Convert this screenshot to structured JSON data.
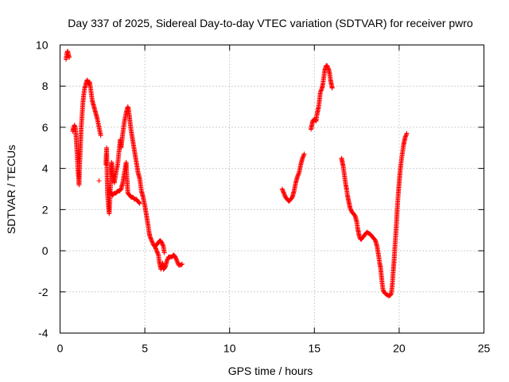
{
  "chart_data": {
    "type": "scatter",
    "title": "Day 337 of 2025, Sidereal Day-to-day VTEC variation (SDTVAR) for receiver pwro",
    "xlabel": "GPS time / hours",
    "ylabel": "SDTVAR / TECUs",
    "xlim": [
      0,
      25
    ],
    "ylim": [
      -4,
      10
    ],
    "xticks": [
      "0",
      "5",
      "10",
      "15",
      "20",
      "25"
    ],
    "yticks": [
      "-4",
      "-2",
      "0",
      "2",
      "4",
      "6",
      "8",
      "10"
    ],
    "grid": true,
    "marker": "plus",
    "color": "#ff0000",
    "series": [
      {
        "name": "pwro",
        "segments": [
          [
            [
              0.35,
              9.3
            ],
            [
              0.4,
              9.6
            ],
            [
              0.45,
              9.7
            ],
            [
              0.5,
              9.5
            ],
            [
              0.55,
              9.4
            ]
          ],
          [
            [
              0.75,
              5.8
            ],
            [
              0.8,
              6.0
            ],
            [
              0.85,
              6.1
            ],
            [
              0.9,
              6.0
            ],
            [
              0.95,
              5.5
            ],
            [
              1.0,
              4.8
            ],
            [
              1.05,
              4.0
            ],
            [
              1.1,
              3.5
            ],
            [
              1.12,
              3.2
            ],
            [
              1.15,
              4.0
            ],
            [
              1.2,
              5.0
            ],
            [
              1.25,
              6.0
            ],
            [
              1.3,
              6.6
            ],
            [
              1.35,
              7.2
            ],
            [
              1.4,
              7.6
            ],
            [
              1.45,
              7.9
            ],
            [
              1.5,
              8.0
            ],
            [
              1.55,
              8.2
            ],
            [
              1.6,
              8.3
            ],
            [
              1.65,
              8.2
            ],
            [
              1.7,
              8.1
            ],
            [
              1.75,
              8.2
            ],
            [
              1.8,
              7.9
            ],
            [
              1.85,
              7.6
            ],
            [
              1.9,
              7.3
            ],
            [
              2.0,
              7.0
            ],
            [
              2.1,
              6.7
            ],
            [
              2.2,
              6.4
            ],
            [
              2.3,
              6.0
            ],
            [
              2.4,
              5.6
            ]
          ],
          [
            [
              2.7,
              4.2
            ],
            [
              2.75,
              5.0
            ],
            [
              2.78,
              3.5
            ],
            [
              2.8,
              2.8
            ],
            [
              2.85,
              2.2
            ],
            [
              2.9,
              1.8
            ],
            [
              2.95,
              2.6
            ],
            [
              3.0,
              3.8
            ],
            [
              3.05,
              4.3
            ],
            [
              3.1,
              3.6
            ],
            [
              3.2,
              3.3
            ],
            [
              3.3,
              3.8
            ],
            [
              3.4,
              4.2
            ],
            [
              3.5,
              5.0
            ],
            [
              3.55,
              5.4
            ],
            [
              3.6,
              5.0
            ],
            [
              3.7,
              5.7
            ],
            [
              3.8,
              6.3
            ],
            [
              3.9,
              6.7
            ],
            [
              4.0,
              7.0
            ],
            [
              4.05,
              6.8
            ],
            [
              4.1,
              6.5
            ],
            [
              4.15,
              6.1
            ],
            [
              4.2,
              5.8
            ],
            [
              4.3,
              5.3
            ],
            [
              4.4,
              4.8
            ],
            [
              4.5,
              4.3
            ],
            [
              4.6,
              3.8
            ],
            [
              4.7,
              3.5
            ],
            [
              4.8,
              2.9
            ],
            [
              4.9,
              2.6
            ],
            [
              5.0,
              2.2
            ],
            [
              5.1,
              1.7
            ],
            [
              5.2,
              1.2
            ],
            [
              5.25,
              0.9
            ],
            [
              5.3,
              0.7
            ],
            [
              5.4,
              0.5
            ],
            [
              5.5,
              0.3
            ],
            [
              5.6,
              0.2
            ],
            [
              5.7,
              0.0
            ],
            [
              5.8,
              -0.2
            ],
            [
              5.85,
              -0.5
            ],
            [
              5.9,
              -0.7
            ],
            [
              5.95,
              -0.9
            ],
            [
              6.0,
              -0.8
            ],
            [
              6.05,
              -0.6
            ],
            [
              6.1,
              -0.9
            ],
            [
              6.2,
              -0.8
            ],
            [
              6.3,
              -0.5
            ],
            [
              6.4,
              -0.3
            ],
            [
              6.5,
              -0.3
            ],
            [
              6.6,
              -0.3
            ],
            [
              6.7,
              -0.2
            ],
            [
              6.8,
              -0.3
            ],
            [
              6.9,
              -0.5
            ],
            [
              7.0,
              -0.7
            ],
            [
              7.1,
              -0.7
            ],
            [
              7.2,
              -0.65
            ]
          ],
          [
            [
              2.9,
              3.0
            ],
            [
              3.0,
              2.8
            ],
            [
              3.1,
              2.7
            ],
            [
              3.2,
              2.8
            ],
            [
              3.3,
              2.8
            ],
            [
              3.4,
              2.9
            ],
            [
              3.5,
              2.9
            ],
            [
              3.6,
              3.0
            ],
            [
              3.7,
              3.3
            ],
            [
              3.8,
              3.8
            ],
            [
              3.9,
              4.3
            ],
            [
              3.95,
              3.5
            ],
            [
              4.0,
              2.8
            ],
            [
              4.1,
              2.7
            ],
            [
              4.2,
              2.6
            ],
            [
              4.3,
              2.6
            ],
            [
              4.4,
              2.5
            ],
            [
              4.5,
              2.5
            ],
            [
              4.6,
              2.4
            ],
            [
              4.7,
              2.3
            ]
          ],
          [
            [
              5.6,
              0.2
            ],
            [
              5.7,
              0.3
            ],
            [
              5.8,
              0.4
            ],
            [
              5.9,
              0.5
            ],
            [
              6.0,
              0.4
            ],
            [
              6.1,
              0.2
            ],
            [
              6.15,
              -0.1
            ]
          ],
          [
            [
              2.3,
              3.4
            ]
          ],
          [
            [
              13.1,
              3.0
            ],
            [
              13.2,
              2.8
            ],
            [
              13.3,
              2.6
            ],
            [
              13.4,
              2.5
            ],
            [
              13.5,
              2.4
            ],
            [
              13.6,
              2.5
            ],
            [
              13.7,
              2.6
            ],
            [
              13.8,
              2.9
            ],
            [
              13.9,
              3.3
            ],
            [
              14.0,
              3.6
            ],
            [
              14.1,
              3.8
            ],
            [
              14.2,
              4.2
            ],
            [
              14.3,
              4.5
            ],
            [
              14.4,
              4.7
            ]
          ],
          [
            [
              14.8,
              5.9
            ],
            [
              14.85,
              6.1
            ],
            [
              14.9,
              6.3
            ],
            [
              15.0,
              6.4
            ],
            [
              15.1,
              6.3
            ],
            [
              15.15,
              6.6
            ],
            [
              15.2,
              6.8
            ],
            [
              15.25,
              7.0
            ],
            [
              15.3,
              7.3
            ],
            [
              15.35,
              7.7
            ],
            [
              15.4,
              7.8
            ],
            [
              15.45,
              7.9
            ],
            [
              15.5,
              8.1
            ],
            [
              15.55,
              8.4
            ],
            [
              15.6,
              8.7
            ],
            [
              15.65,
              8.9
            ],
            [
              15.7,
              9.0
            ],
            [
              15.75,
              9.0
            ],
            [
              15.8,
              8.9
            ],
            [
              15.85,
              8.8
            ],
            [
              15.9,
              8.6
            ],
            [
              15.95,
              8.3
            ],
            [
              16.0,
              8.1
            ],
            [
              16.05,
              7.9
            ]
          ],
          [
            [
              16.6,
              4.5
            ],
            [
              16.65,
              4.3
            ],
            [
              16.7,
              4.1
            ],
            [
              16.75,
              3.8
            ],
            [
              16.8,
              3.5
            ],
            [
              16.85,
              3.2
            ],
            [
              16.9,
              3.0
            ],
            [
              16.95,
              2.7
            ],
            [
              17.0,
              2.5
            ],
            [
              17.05,
              2.3
            ],
            [
              17.1,
              2.1
            ],
            [
              17.2,
              1.9
            ],
            [
              17.3,
              1.8
            ],
            [
              17.4,
              1.7
            ],
            [
              17.5,
              1.4
            ],
            [
              17.55,
              1.1
            ],
            [
              17.6,
              0.9
            ],
            [
              17.65,
              0.7
            ],
            [
              17.7,
              0.6
            ],
            [
              17.75,
              0.55
            ],
            [
              17.8,
              0.6
            ],
            [
              17.9,
              0.7
            ],
            [
              18.0,
              0.8
            ],
            [
              18.1,
              0.9
            ],
            [
              18.2,
              0.85
            ],
            [
              18.3,
              0.8
            ],
            [
              18.4,
              0.7
            ],
            [
              18.5,
              0.6
            ],
            [
              18.6,
              0.5
            ],
            [
              18.7,
              0.2
            ],
            [
              18.8,
              -0.3
            ],
            [
              18.85,
              -0.6
            ],
            [
              18.9,
              -0.8
            ],
            [
              18.95,
              -1.2
            ],
            [
              19.0,
              -1.6
            ],
            [
              19.05,
              -1.9
            ],
            [
              19.1,
              -2.0
            ],
            [
              19.2,
              -2.1
            ],
            [
              19.3,
              -2.15
            ],
            [
              19.4,
              -2.2
            ],
            [
              19.5,
              -2.15
            ],
            [
              19.55,
              -2.0
            ],
            [
              19.6,
              -1.6
            ],
            [
              19.65,
              -1.0
            ],
            [
              19.7,
              -0.5
            ],
            [
              19.75,
              0.2
            ],
            [
              19.8,
              0.8
            ],
            [
              19.85,
              1.5
            ],
            [
              19.9,
              2.2
            ],
            [
              19.95,
              2.8
            ],
            [
              20.0,
              3.3
            ],
            [
              20.05,
              3.8
            ],
            [
              20.1,
              4.2
            ],
            [
              20.15,
              4.5
            ],
            [
              20.2,
              4.8
            ],
            [
              20.25,
              5.1
            ],
            [
              20.3,
              5.3
            ],
            [
              20.35,
              5.5
            ],
            [
              20.4,
              5.6
            ],
            [
              20.45,
              5.7
            ]
          ]
        ]
      }
    ]
  }
}
